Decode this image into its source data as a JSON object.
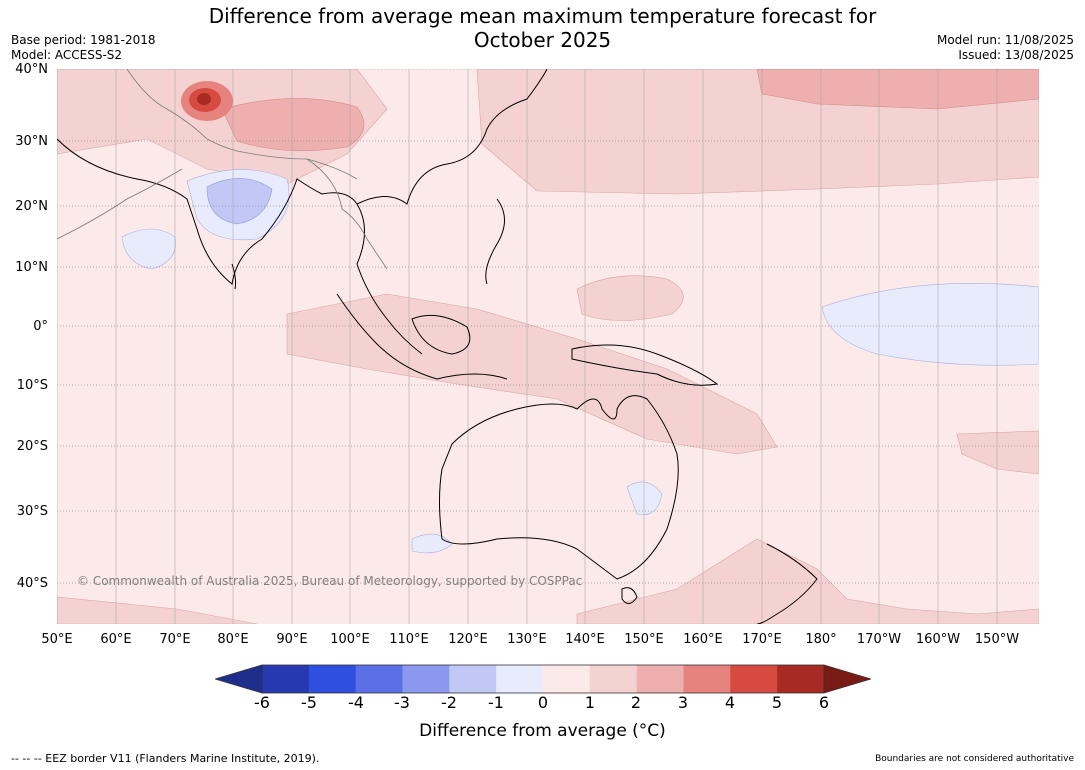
{
  "title_line1": "Difference from average mean maximum temperature forecast for",
  "title_line2": "October 2025",
  "meta_left": {
    "base_period": "Base period: 1981-2018",
    "model": "Model: ACCESS-S2"
  },
  "meta_right": {
    "model_run": "Model run: 11/08/2025",
    "issued": "Issued: 13/08/2025"
  },
  "copyright": "© Commonwealth of Australia 2025, Bureau of Meteorology, supported by COSPPac",
  "lat_labels": [
    "40°N",
    "30°N",
    "20°N",
    "10°N",
    "0°",
    "10°S",
    "20°S",
    "30°S",
    "40°S"
  ],
  "lon_labels": [
    "50°E",
    "60°E",
    "70°E",
    "80°E",
    "90°E",
    "100°E",
    "110°E",
    "120°E",
    "130°E",
    "140°E",
    "150°E",
    "160°E",
    "170°E",
    "180°",
    "170°W",
    "160°W",
    "150°W"
  ],
  "colorbar": {
    "ticks": [
      "-6",
      "-5",
      "-4",
      "-3",
      "-2",
      "-1",
      "0",
      "1",
      "2",
      "3",
      "4",
      "5",
      "6"
    ],
    "colors": [
      "#1f2d8c",
      "#2739b0",
      "#2f4fe0",
      "#5b6fe6",
      "#8a98ee",
      "#c2c8f6",
      "#e8ebfc",
      "#fce9e9",
      "#f4d2d2",
      "#eeafaf",
      "#e7837e",
      "#d74a41",
      "#a82a22",
      "#7a1a14"
    ],
    "label": "Difference from average (°C)"
  },
  "footer_left": "--  --  -- EEZ border V11 (Flanders Marine Institute, 2019).",
  "footer_right": "Boundaries are not considered authoritative",
  "map_colors": {
    "ocean_base": "#fce9e9",
    "warm_1_2": "#f4d2d2",
    "warm_2_3": "#eeafaf",
    "warm_3_4": "#e7837e",
    "warm_4_5": "#d74a41",
    "cool_0_m1": "#e8ebfc",
    "cool_m1_m2": "#c2c8f6"
  }
}
